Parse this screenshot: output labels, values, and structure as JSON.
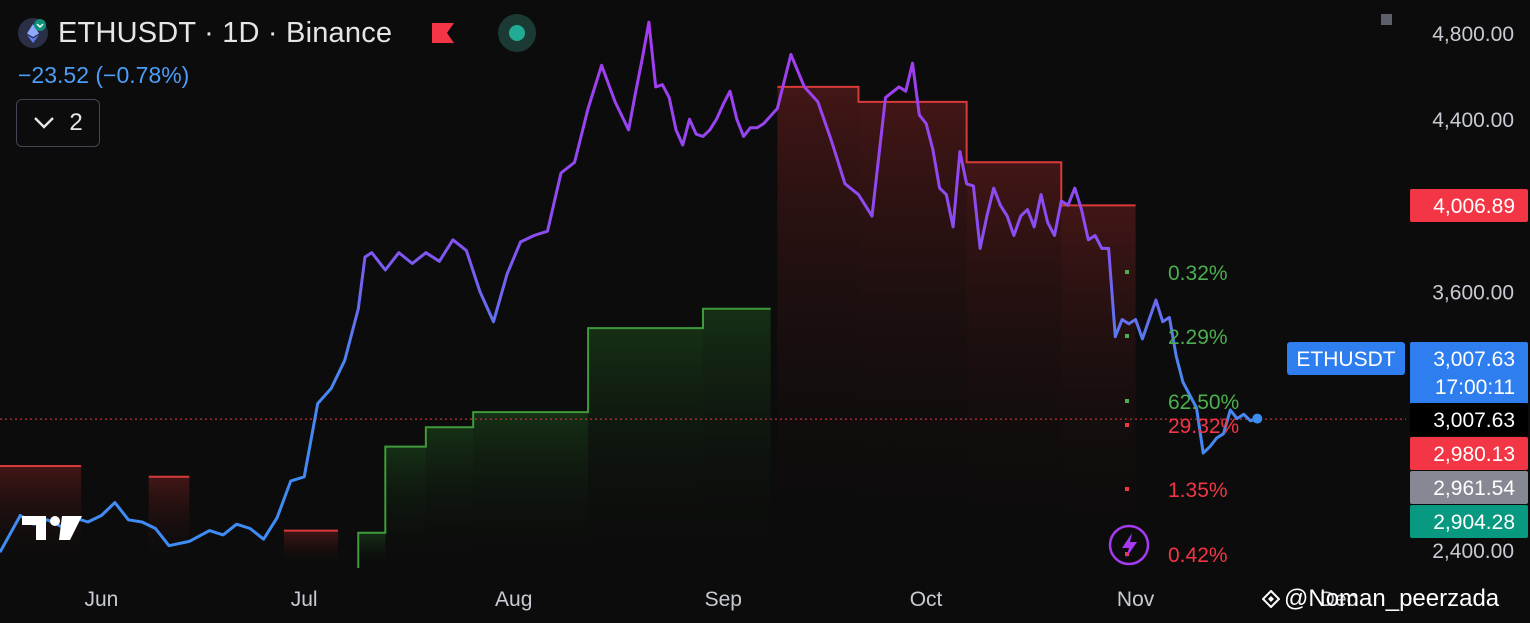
{
  "header": {
    "title": "ETHUSDT · 1D · Binance",
    "change": "−23.52 (−0.78%)",
    "collapse_count": "2"
  },
  "watermark": "@Noman_peerzada",
  "colors": {
    "background": "#0c0c0c",
    "line_blue": "#3d8df5",
    "line_purple": "#a13cf0",
    "support_green": "#3e9a3a",
    "resistance_red": "#d83a3a",
    "label_red": "#f23645",
    "label_green": "#089981",
    "label_blue": "#2e7ef0",
    "label_grey": "#868993"
  },
  "chart_data": {
    "type": "line",
    "symbol": "ETHUSDT",
    "y_axis_ticks": [
      "4,800.00",
      "4,400.00",
      "3,600.00",
      "2,400.00"
    ],
    "y_tick_values": [
      4800,
      4400,
      3600,
      2400
    ],
    "ylim": [
      2360,
      4900
    ],
    "x_axis_labels": [
      "Jun",
      "Jul",
      "Aug",
      "Sep",
      "Oct",
      "Nov",
      "Dec"
    ],
    "x_label_days": [
      15,
      45,
      76,
      107,
      137,
      168,
      198
    ],
    "x_range_days": [
      0,
      208
    ],
    "x": [
      0,
      3,
      5,
      7,
      9,
      11,
      13,
      15,
      17,
      19,
      21,
      23,
      25,
      28,
      31,
      33,
      35,
      37,
      39,
      41,
      43,
      45,
      47,
      49,
      51,
      53,
      54,
      55,
      57,
      59,
      61,
      63,
      65,
      67,
      69,
      71,
      73,
      75,
      77,
      79,
      81,
      83,
      85,
      87,
      89,
      91,
      93,
      94,
      95,
      96,
      97,
      98,
      99,
      100,
      101,
      102,
      103,
      104,
      105,
      106,
      107,
      108,
      109,
      110,
      111,
      112,
      113,
      115,
      117,
      119,
      121,
      123,
      125,
      127,
      129,
      131,
      133,
      134,
      135,
      136,
      137,
      138,
      139,
      140,
      141,
      142,
      143,
      144,
      145,
      146,
      147,
      148,
      149,
      150,
      151,
      152,
      153,
      154,
      155,
      156,
      157,
      158,
      159,
      160,
      161,
      162,
      163,
      164,
      165,
      166,
      167,
      168,
      169,
      170,
      171,
      172,
      173,
      174,
      175,
      176,
      177,
      178,
      179,
      180,
      181,
      182,
      183,
      184,
      185,
      186
    ],
    "values": [
      2390,
      2560,
      2520,
      2540,
      2510,
      2550,
      2530,
      2560,
      2620,
      2540,
      2530,
      2500,
      2420,
      2440,
      2490,
      2470,
      2520,
      2500,
      2450,
      2550,
      2720,
      2740,
      3080,
      3150,
      3280,
      3520,
      3760,
      3780,
      3700,
      3780,
      3730,
      3780,
      3740,
      3840,
      3790,
      3600,
      3460,
      3680,
      3830,
      3860,
      3880,
      4150,
      4200,
      4450,
      4650,
      4480,
      4350,
      4520,
      4680,
      4850,
      4550,
      4560,
      4500,
      4350,
      4280,
      4400,
      4330,
      4320,
      4350,
      4400,
      4470,
      4530,
      4400,
      4320,
      4360,
      4360,
      4380,
      4450,
      4700,
      4550,
      4480,
      4300,
      4100,
      4050,
      3950,
      4500,
      4550,
      4530,
      4660,
      4420,
      4380,
      4260,
      4080,
      4050,
      3900,
      4250,
      4100,
      4090,
      3800,
      3950,
      4080,
      4000,
      3950,
      3860,
      3950,
      3980,
      3900,
      4050,
      3920,
      3860,
      4020,
      4000,
      4080,
      3980,
      3840,
      3860,
      3800,
      3800,
      3390,
      3470,
      3450,
      3470,
      3380,
      3470,
      3560,
      3460,
      3480,
      3300,
      3180,
      3120,
      3060,
      2850,
      2880,
      2920,
      2940,
      3050,
      3010,
      3030,
      3000,
      3010
    ]
  },
  "support_levels": [
    {
      "x0": 53,
      "x1": 57,
      "y": 2480
    },
    {
      "x0": 57,
      "x1": 63,
      "y": 2880
    },
    {
      "x0": 63,
      "x1": 70,
      "y": 2970
    },
    {
      "x0": 70,
      "x1": 87,
      "y": 3040
    },
    {
      "x0": 87,
      "x1": 104,
      "y": 3430
    },
    {
      "x0": 104,
      "x1": 114,
      "y": 3520
    }
  ],
  "resistance_levels": [
    {
      "x0": 0,
      "x1": 12,
      "y": 2790
    },
    {
      "x0": 22,
      "x1": 28,
      "y": 2740
    },
    {
      "x0": 42,
      "x1": 50,
      "y": 2490
    },
    {
      "x0": 115,
      "x1": 127,
      "y": 4550
    },
    {
      "x0": 127,
      "x1": 143,
      "y": 4480
    },
    {
      "x0": 143,
      "x1": 157,
      "y": 4200
    },
    {
      "x0": 157,
      "x1": 168,
      "y": 4000
    }
  ],
  "current_price": 3007.63,
  "price_labels": [
    {
      "label": "4,006.89",
      "value": 4006.89,
      "kind": "red"
    },
    {
      "label": "3,007.63",
      "value": 3007.63,
      "kind": "blue",
      "sublabel": "17:00:11",
      "tag": "ETHUSDT"
    },
    {
      "label": "3,007.63",
      "value": 3007.63,
      "kind": "black"
    },
    {
      "label": "2,980.13",
      "value": 2980.13,
      "kind": "red"
    },
    {
      "label": "2,961.54",
      "value": 2961.54,
      "kind": "grey"
    },
    {
      "label": "2,904.28",
      "value": 2904.28,
      "kind": "green"
    }
  ],
  "percent_labels": [
    {
      "label": "0.32%",
      "color": "green"
    },
    {
      "label": "2.29%",
      "color": "green"
    },
    {
      "label": "62.50%",
      "color": "green"
    },
    {
      "label": "29.32%",
      "color": "red"
    },
    {
      "label": "1.35%",
      "color": "red"
    },
    {
      "label": "0.42%",
      "color": "red"
    }
  ]
}
